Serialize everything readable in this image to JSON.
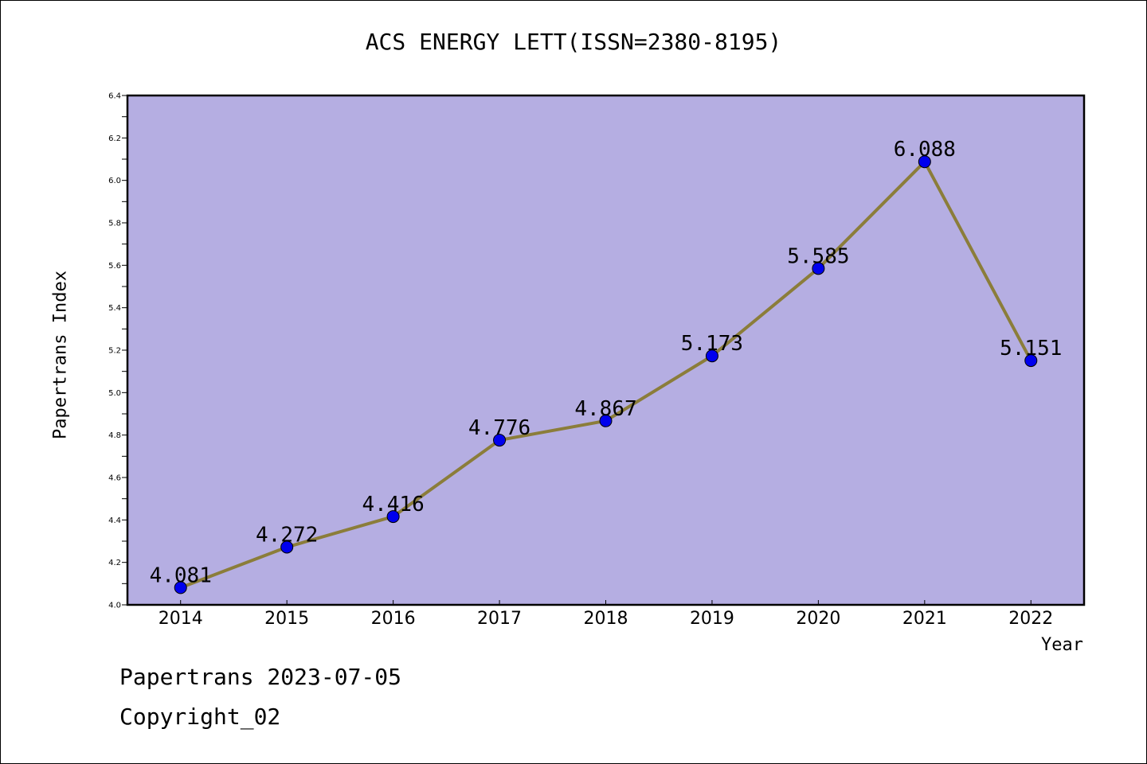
{
  "title": "ACS ENERGY LETT(ISSN=2380-8195)",
  "footer": {
    "line1": "Papertrans 2023-07-05",
    "line2": "Copyright_02"
  },
  "chart_data": {
    "type": "line",
    "title": "ACS ENERGY LETT(ISSN=2380-8195)",
    "xlabel": "Year",
    "ylabel": "Papertrans Index",
    "categories": [
      "2014",
      "2015",
      "2016",
      "2017",
      "2018",
      "2019",
      "2020",
      "2021",
      "2022"
    ],
    "series": [
      {
        "values": [
          4.081,
          4.272,
          4.416,
          4.776,
          4.867,
          5.173,
          5.585,
          6.088,
          5.151
        ],
        "labels": [
          "4.081",
          "4.272",
          "4.416",
          "4.776",
          "4.867",
          "5.173",
          "5.585",
          "6.088",
          "5.151"
        ]
      }
    ],
    "ylim": [
      4.0,
      6.4
    ],
    "yticks": [
      "4.0",
      "4.2",
      "4.4",
      "4.6",
      "4.8",
      "5.0",
      "5.2",
      "5.4",
      "5.6",
      "5.8",
      "6.0",
      "6.2",
      "6.4"
    ],
    "grid": false,
    "colors": {
      "plot_background": "#b5aee2",
      "line": "#8b7d3a",
      "marker": "#0000ee"
    }
  }
}
